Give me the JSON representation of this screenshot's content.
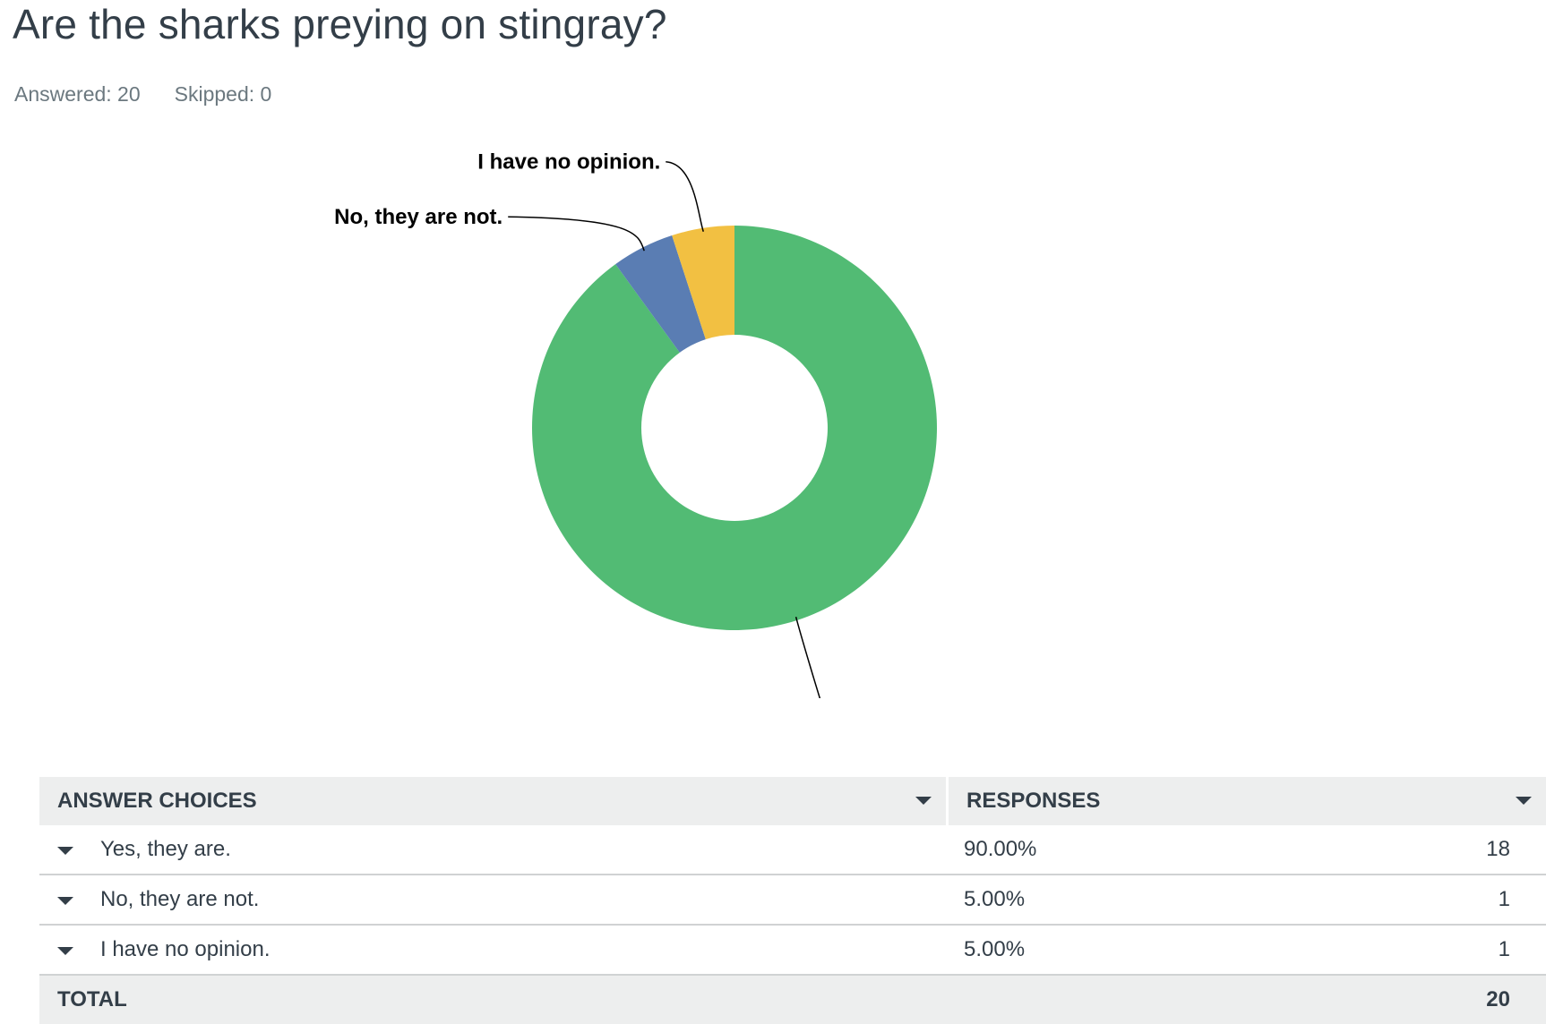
{
  "question": {
    "title": "Are the sharks preying on stingray?",
    "answered": "Answered: 20",
    "skipped": "Skipped: 0"
  },
  "colors": {
    "yes": "#52bb74",
    "no": "#5a7db3",
    "no_opinion": "#f2c042"
  },
  "chart_data": {
    "type": "pie",
    "donut": true,
    "title": "",
    "categories": [
      "Yes, they are.",
      "No, they are not.",
      "I have no opinion."
    ],
    "values": [
      90.0,
      5.0,
      5.0
    ],
    "counts": [
      18,
      1,
      1
    ],
    "labels": [
      "Yes, they are.",
      "No, they are not.",
      "I have no opinion."
    ]
  },
  "table": {
    "headers": {
      "choices": "ANSWER CHOICES",
      "responses": "RESPONSES"
    },
    "rows": [
      {
        "choice": "Yes, they are.",
        "percent": "90.00%",
        "count": "18"
      },
      {
        "choice": "No, they are not.",
        "percent": "5.00%",
        "count": "1"
      },
      {
        "choice": "I have no opinion.",
        "percent": "5.00%",
        "count": "1"
      }
    ],
    "total_label": "TOTAL",
    "total_value": "20"
  }
}
